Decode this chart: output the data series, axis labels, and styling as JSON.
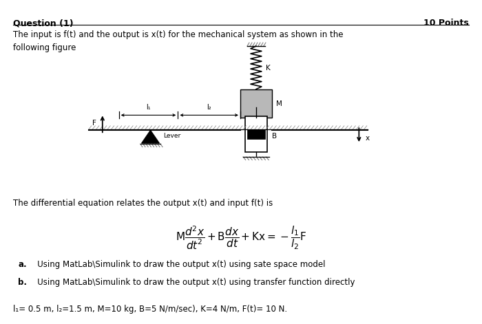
{
  "title_left": "Question (1)",
  "title_right": "10 Points",
  "intro_text": "The input is f(t) and the output is x(t) for the mechanical system as shown in the\nfollowing figure",
  "diff_eq_text": "The differential equation relates the output x(t) and input f(t) is",
  "part_a": "   Using MatLab\\Simulink to draw the output x(t) using sate space model",
  "part_b": "   Using MatLab\\Simulink to draw the output x(t) using transfer function directly",
  "part_a_bold": "a.",
  "part_b_bold": "b.",
  "params_text": "l₁= 0.5 m, l₂=1.5 m, M=10 kg, B=5 N/m/sec), K=4 N/m, F(t)= 10 N.",
  "fig_width": 7.0,
  "fig_height": 4.71
}
